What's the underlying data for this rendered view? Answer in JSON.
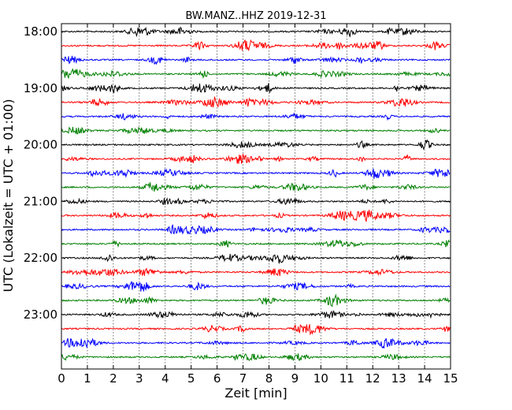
{
  "chart_data": {
    "type": "line",
    "title": "BW.MANZ..HHZ 2019-12-31",
    "xlabel": "Zeit  [min]",
    "ylabel": "UTC (Lokalzeit = UTC + 01:00)",
    "xlim": [
      0,
      15
    ],
    "x_ticks": [
      "0",
      "1",
      "2",
      "3",
      "4",
      "5",
      "6",
      "7",
      "8",
      "9",
      "10",
      "11",
      "12",
      "13",
      "14",
      "15"
    ],
    "y_tick_labels": [
      "18:00",
      "19:00",
      "20:00",
      "21:00",
      "22:00",
      "23:00"
    ],
    "grid": {
      "x": "dotted vertical lines at each minute",
      "y": false
    },
    "trace_colors": [
      "#000000",
      "#ff0000",
      "#0000ff",
      "#008000"
    ],
    "series": [
      {
        "start": "18:00",
        "color": "#000000"
      },
      {
        "start": "18:15",
        "color": "#ff0000"
      },
      {
        "start": "18:30",
        "color": "#0000ff"
      },
      {
        "start": "18:45",
        "color": "#008000"
      },
      {
        "start": "19:00",
        "color": "#000000"
      },
      {
        "start": "19:15",
        "color": "#ff0000"
      },
      {
        "start": "19:30",
        "color": "#0000ff"
      },
      {
        "start": "19:45",
        "color": "#008000"
      },
      {
        "start": "20:00",
        "color": "#000000"
      },
      {
        "start": "20:15",
        "color": "#ff0000"
      },
      {
        "start": "20:30",
        "color": "#0000ff"
      },
      {
        "start": "20:45",
        "color": "#008000"
      },
      {
        "start": "21:00",
        "color": "#000000"
      },
      {
        "start": "21:15",
        "color": "#ff0000"
      },
      {
        "start": "21:30",
        "color": "#0000ff"
      },
      {
        "start": "21:45",
        "color": "#008000"
      },
      {
        "start": "22:00",
        "color": "#000000"
      },
      {
        "start": "22:15",
        "color": "#ff0000"
      },
      {
        "start": "22:30",
        "color": "#0000ff"
      },
      {
        "start": "22:45",
        "color": "#008000"
      },
      {
        "start": "23:00",
        "color": "#000000"
      },
      {
        "start": "23:15",
        "color": "#ff0000"
      },
      {
        "start": "23:30",
        "color": "#0000ff"
      },
      {
        "start": "23:45",
        "color": "#008000"
      }
    ]
  }
}
